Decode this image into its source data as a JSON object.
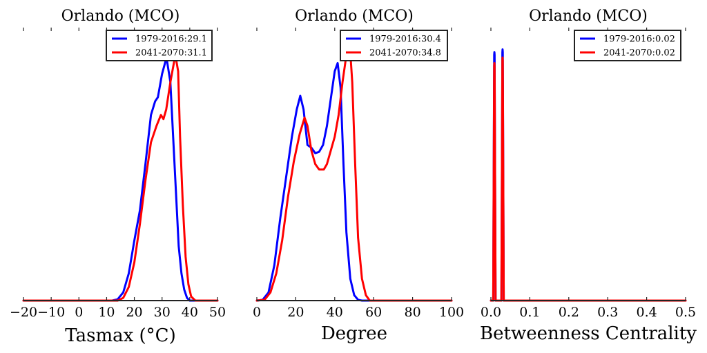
{
  "chart_data": [
    {
      "type": "line",
      "title": "Orlando (MCO)",
      "xlabel": "Tasmax ($^\\circ$C)",
      "xlabel_display": "Tasmax (°C)",
      "ylabel": "",
      "xlim": [
        -20,
        50
      ],
      "ylim": [
        0,
        1
      ],
      "xticks": [
        -20,
        -10,
        0,
        10,
        20,
        30,
        40,
        50
      ],
      "xtick_labels": [
        "−20",
        "−10",
        "0",
        "10",
        "20",
        "30",
        "40",
        "50"
      ],
      "yticks_visible": false,
      "grid": false,
      "legend_position": "top-right",
      "series": [
        {
          "name": "1979-2016:29.1",
          "color": "#0000ff",
          "x": [
            -20,
            12,
            14,
            16,
            18,
            20,
            22,
            24,
            26,
            27.5,
            28.5,
            30,
            31.6,
            33,
            34,
            35,
            36,
            37,
            38,
            39,
            40,
            50
          ],
          "y": [
            0,
            0,
            0.005,
            0.03,
            0.1,
            0.22,
            0.33,
            0.5,
            0.68,
            0.73,
            0.745,
            0.83,
            0.89,
            0.8,
            0.6,
            0.4,
            0.2,
            0.1,
            0.04,
            0.01,
            0,
            0
          ]
        },
        {
          "name": "2041-2070:31.1",
          "color": "#ff0000",
          "x": [
            -20,
            14,
            16,
            18,
            20,
            22,
            24,
            26,
            28,
            29.6,
            30.5,
            31.5,
            33,
            34.8,
            35.8,
            36.5,
            37.5,
            38.5,
            39.5,
            40.5,
            42,
            50
          ],
          "y": [
            0,
            0,
            0.01,
            0.05,
            0.14,
            0.28,
            0.44,
            0.58,
            0.64,
            0.68,
            0.665,
            0.7,
            0.8,
            0.9,
            0.84,
            0.6,
            0.35,
            0.16,
            0.06,
            0.015,
            0,
            0
          ]
        }
      ]
    },
    {
      "type": "line",
      "title": "Orlando (MCO)",
      "xlabel": "Degree",
      "xlabel_display": "Degree",
      "ylabel": "",
      "xlim": [
        0,
        100
      ],
      "ylim": [
        0,
        1
      ],
      "xticks": [
        0,
        20,
        40,
        60,
        80,
        100
      ],
      "xtick_labels": [
        "0",
        "20",
        "40",
        "60",
        "80",
        "100"
      ],
      "yticks_visible": false,
      "grid": false,
      "legend_position": "top-right",
      "series": [
        {
          "name": "1979-2016:30.4",
          "color": "#0000ff",
          "x": [
            0,
            3,
            6,
            9,
            12,
            15,
            18,
            20.5,
            22.3,
            24,
            26,
            28,
            30,
            32,
            34,
            36,
            38,
            40,
            41.5,
            43,
            44.5,
            46,
            48,
            50,
            52,
            54,
            100
          ],
          "y": [
            0,
            0.003,
            0.03,
            0.13,
            0.3,
            0.45,
            0.6,
            0.7,
            0.75,
            0.7,
            0.57,
            0.56,
            0.54,
            0.545,
            0.57,
            0.64,
            0.74,
            0.84,
            0.87,
            0.78,
            0.5,
            0.25,
            0.08,
            0.02,
            0.003,
            0,
            0
          ]
        },
        {
          "name": "2041-2070:34.8",
          "color": "#ff0000",
          "x": [
            0,
            4,
            7,
            10,
            13,
            16,
            19,
            22,
            24.5,
            26,
            28,
            30,
            32,
            34.4,
            36,
            38,
            40,
            42,
            44,
            46,
            47.9,
            49,
            50.5,
            52,
            54,
            56,
            58,
            100
          ],
          "y": [
            0,
            0.003,
            0.03,
            0.1,
            0.22,
            0.38,
            0.51,
            0.61,
            0.67,
            0.64,
            0.55,
            0.5,
            0.48,
            0.48,
            0.5,
            0.55,
            0.6,
            0.68,
            0.8,
            0.9,
            0.92,
            0.8,
            0.5,
            0.23,
            0.08,
            0.02,
            0,
            0
          ]
        }
      ]
    },
    {
      "type": "line",
      "title": "Orlando (MCO)",
      "xlabel": "Betweenness Centrality",
      "xlabel_display": "Betweenness Centrality",
      "ylabel": "",
      "xlim": [
        0.0,
        0.5
      ],
      "ylim": [
        0,
        1
      ],
      "xticks": [
        0.0,
        0.1,
        0.2,
        0.3,
        0.4,
        0.5
      ],
      "xtick_labels": [
        "0.0",
        "0.1",
        "0.2",
        "0.3",
        "0.4",
        "0.5"
      ],
      "yticks_visible": false,
      "grid": false,
      "legend_position": "top-right",
      "series": [
        {
          "name": "1979-2016:0.02",
          "color": "#0000ff",
          "x": [
            0.0,
            0.006,
            0.0085,
            0.009,
            0.0095,
            0.012,
            0.027,
            0.0295,
            0.03,
            0.0305,
            0.033,
            0.5
          ],
          "y": [
            0,
            0,
            0.9,
            0.91,
            0.9,
            0,
            0,
            0.91,
            0.92,
            0.91,
            0,
            0
          ]
        },
        {
          "name": "2041-2070:0.02",
          "color": "#ff0000",
          "x": [
            0.0,
            0.006,
            0.0085,
            0.009,
            0.0095,
            0.012,
            0.027,
            0.0295,
            0.03,
            0.0305,
            0.033,
            0.5
          ],
          "y": [
            0,
            0,
            0.86,
            0.87,
            0.86,
            0,
            0,
            0.88,
            0.89,
            0.88,
            0,
            0
          ]
        }
      ]
    }
  ]
}
